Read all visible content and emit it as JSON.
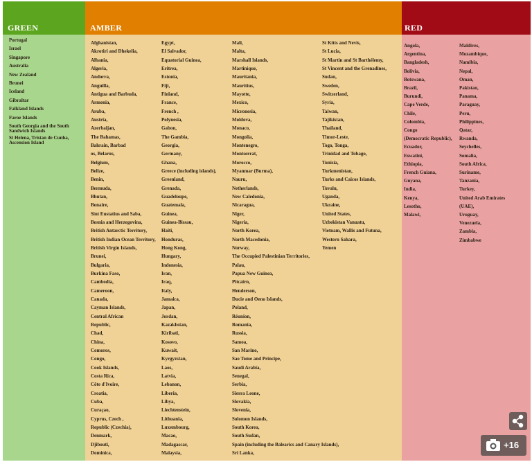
{
  "green": {
    "title": "GREEN",
    "entries": [
      "Portugal",
      "Israel",
      "Singapore",
      "Australia",
      "New Zealand",
      "Brunei",
      "Iceland",
      "Gibraltar",
      "Falkland Islands",
      "Faroe Islands",
      "South Georgia and the South Sandwich Islands",
      "St Helena, Tristan de Cunha, Ascension Island"
    ]
  },
  "amber": {
    "title": "AMBER",
    "columns": [
      [
        "Afghanistan,",
        "Akrotiri and Dhekelia,",
        "Albania,",
        "Algeria,",
        "Andorra,",
        "Anguilla,",
        "Antigua and Barbuda,",
        "Armenia,",
        "Aruba,",
        "Austria,",
        "Azerbaijan,",
        "The Bahamas,",
        "Bahrain, Barbad",
        "os, Belarus,",
        "Belgium,",
        "Belize,",
        "Benin,",
        "Bermuda,",
        "Bhutan,",
        "Bonaire,",
        "Sint Eustatius and Saba,",
        "Bosnia and Herzegovina,",
        "British Antarctic Territory,",
        "British Indian Ocean Territory,",
        "British Virgin Islands,",
        "Brunei,",
        "Bulgaria,",
        "Burkina Faso,",
        "Cambodia,",
        "Cameroon,",
        "Canada,",
        "Cayman Islands,",
        "Central African",
        "Republic,",
        "Chad,",
        "China,",
        "Comoros,",
        "Congo,",
        "Cook Islands,",
        "Costa Rica,",
        "Côte d'Ivoire,",
        "Croatia,",
        "Cuba,",
        "Curaçao,",
        "Cyprus, Czech ,",
        "Republic (Czechia),",
        "Denmark,",
        "Djibouti,",
        "Dominica,"
      ],
      [
        "Egypt,",
        "El Salvador,",
        "Equatorial Guinea,",
        "Eritrea,",
        "Estonia,",
        "Fiji,",
        "Finland,",
        "France,",
        "French ,",
        "Polynesia,",
        "Gabon,",
        "The Gambia,",
        "Georgia,",
        "Germany,",
        "Ghana,",
        "Greece (including islands),",
        "Greenland,",
        "Grenada,",
        "Guadeloupe,",
        "Guatemala,",
        "Guinea,",
        "Guinea-Bissau,",
        "Haiti,",
        "Honduras,",
        "Hong Kong,",
        "Hungary,",
        "Indonesia,",
        "Iran,",
        "Iraq,",
        "Italy,",
        "Jamaica,",
        "Japan,",
        "Jordan,",
        "Kazakhstan,",
        "Kiribati,",
        "Kosovo,",
        "Kuwait,",
        "Kyrgyzstan,",
        "Laos,",
        "Latvia,",
        "Lebanon,",
        "Liberia,",
        "Libya,",
        "Liechtenstein,",
        "Lithuania,",
        "Luxembourg,",
        "Macao,",
        "Madagascar,",
        "Malaysia,"
      ],
      [
        "Mali,",
        "Malta,",
        "Marshall Islands,",
        "Martinique,",
        "Mauritania,",
        "Mauritius,",
        "Mayotte,",
        "Mexico,",
        "Micronesia,",
        "Moldova,",
        "Monaco,",
        "Mongolia,",
        "Montenegro,",
        "Montserrat,",
        "Morocco,",
        "Myanmar (Burma),",
        "Nauru,",
        "Netherlands,",
        "New Caledonia,",
        "Nicaragua,",
        "Niger,",
        "Nigeria,",
        "North Korea,",
        "North Macedonia,",
        "Norway,",
        "The Occupied Palestinian Territories,",
        "Palau,",
        "Papua New Guinea,",
        "Pitcairn,",
        "Henderson,",
        "Ducie and Oeno Islands,",
        "Poland,",
        "Réunion,",
        "Romania,",
        "Russia,",
        "Samoa,",
        "San Marino,",
        "Sao Tome and Principe,",
        "Saudi Arabia,",
        "Senegal,",
        "Serbia,",
        "Sierra Leone,",
        "Slovakia,",
        "Slovenia,",
        "Solomon Islands,",
        "South Korea,",
        "South Sudan,",
        "Spain (including the Balearics and Canary Islands),",
        "Sri Lanka,"
      ],
      [
        "St Kitts and Nevis,",
        "St Lucia,",
        "St Martin and St Barthélemy,",
        "St Vincent and the Grenadines,",
        "Sudan,",
        "Sweden,",
        "Switzerland,",
        "Syria,",
        "Taiwan,",
        "Tajikistan,",
        "Thailand,",
        "Timor-Leste,",
        "Togo, Tonga,",
        "Trinidad and Tobago,",
        "Tunisia,",
        "Turkmenistan,",
        "Turks and Caicos Islands,",
        "Tuvalu,",
        "Uganda,",
        "Ukraine,",
        "United States,",
        "Uzbekistan Vanuatu,",
        "Vietnam, Wallis and Futuna,",
        "Western Sahara,",
        "Yemen"
      ]
    ]
  },
  "red": {
    "title": "RED",
    "columns": [
      [
        "Angola,",
        "Argentina,",
        "Bangladesh,",
        "Bolivia,",
        "Botswana,",
        "Brazil,",
        "Burundi,",
        "Cape Verde,",
        "Chile,",
        "Colombia,",
        "Congo",
        "(Democratic Republic),",
        "Ecuador,",
        "Eswatini,",
        "Ethiopia,",
        "French Guiana,",
        "Guyana,",
        "India,",
        "Kenya,",
        "Lesotho,",
        "Malawi,"
      ],
      [
        "Maldives,",
        "Mozambique,",
        "Namibia,",
        "Nepal,",
        "Oman,",
        "Pakistan,",
        "Panama,",
        "Paraguay,",
        "Peru,",
        "Philippines,",
        "Qatar,",
        "Rwanda,",
        "Seychelles,",
        "Somalia,",
        "South Africa,",
        "Suriname,",
        "Tanzania,",
        "Turkey,",
        "United Arab Emirates",
        "(UAE),",
        "Uruguay,",
        "Venezuela,",
        "Zambia,",
        "Zimbabwe"
      ]
    ]
  },
  "gallery": {
    "count": "+16"
  }
}
